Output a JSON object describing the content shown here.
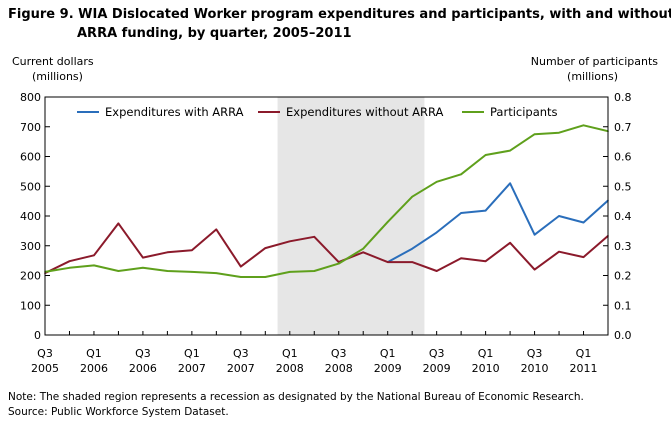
{
  "figure": {
    "title_line1": "Figure 9. WIA Dislocated Worker program expenditures and participants, with and without",
    "title_line2": "ARRA funding, by quarter, 2005–2011",
    "note": "Note: The shaded region represents a recession as designated by the National Bureau of Economic Research.",
    "source": "Source: Public Workforce System Dataset."
  },
  "chart_data": {
    "type": "line",
    "x_categories": [
      "Q3 2005",
      "Q4 2005",
      "Q1 2006",
      "Q2 2006",
      "Q3 2006",
      "Q4 2006",
      "Q1 2007",
      "Q2 2007",
      "Q3 2007",
      "Q4 2007",
      "Q1 2008",
      "Q2 2008",
      "Q3 2008",
      "Q4 2008",
      "Q1 2009",
      "Q2 2009",
      "Q3 2009",
      "Q4 2009",
      "Q1 2010",
      "Q2 2010",
      "Q3 2010",
      "Q4 2010",
      "Q1 2011",
      "Q2 2011"
    ],
    "x_tick_labels": [
      {
        "index": 0,
        "quarter": "Q3",
        "year": "2005"
      },
      {
        "index": 2,
        "quarter": "Q1",
        "year": "2006"
      },
      {
        "index": 4,
        "quarter": "Q3",
        "year": "2006"
      },
      {
        "index": 6,
        "quarter": "Q1",
        "year": "2007"
      },
      {
        "index": 8,
        "quarter": "Q3",
        "year": "2007"
      },
      {
        "index": 10,
        "quarter": "Q1",
        "year": "2008"
      },
      {
        "index": 12,
        "quarter": "Q3",
        "year": "2008"
      },
      {
        "index": 14,
        "quarter": "Q1",
        "year": "2009"
      },
      {
        "index": 16,
        "quarter": "Q3",
        "year": "2009"
      },
      {
        "index": 18,
        "quarter": "Q1",
        "year": "2010"
      },
      {
        "index": 20,
        "quarter": "Q3",
        "year": "2010"
      },
      {
        "index": 22,
        "quarter": "Q1",
        "year": "2011"
      }
    ],
    "y_left": {
      "label_line1": "Current dollars",
      "label_line2": "(millions)",
      "range": [
        0,
        800
      ],
      "ticks": [
        0,
        100,
        200,
        300,
        400,
        500,
        600,
        700,
        800
      ],
      "tick_labels": [
        "0",
        "100",
        "200",
        "300",
        "400",
        "500",
        "600",
        "700",
        "800"
      ]
    },
    "y_right": {
      "label_line1": "Number of participants",
      "label_line2": "(millions)",
      "range": [
        0,
        0.8
      ],
      "ticks": [
        0,
        0.1,
        0.2,
        0.3,
        0.4,
        0.5,
        0.6,
        0.7,
        0.8
      ],
      "tick_labels": [
        "0.0",
        "0.1",
        "0.2",
        "0.3",
        "0.4",
        "0.5",
        "0.6",
        "0.7",
        "0.8"
      ]
    },
    "shaded_region": {
      "from": "Q4 2007",
      "to": "Q2 2009"
    },
    "legend_position": "top",
    "grid": false,
    "series": [
      {
        "name": "Expenditures with ARRA",
        "axis": "left",
        "color": "#2a6ebb",
        "values": [
          null,
          null,
          null,
          null,
          null,
          null,
          null,
          null,
          null,
          null,
          null,
          null,
          null,
          null,
          245,
          290,
          345,
          410,
          418,
          510,
          337,
          400,
          378,
          452
        ]
      },
      {
        "name": "Expenditures without ARRA",
        "axis": "left",
        "color": "#8b1a2b",
        "values": [
          208,
          248,
          268,
          375,
          260,
          278,
          285,
          355,
          230,
          292,
          315,
          330,
          245,
          278,
          245,
          245,
          215,
          258,
          248,
          310,
          220,
          280,
          262,
          333
        ]
      },
      {
        "name": "Participants",
        "axis": "right",
        "color": "#5fa01c",
        "values": [
          0.212,
          0.226,
          0.234,
          0.215,
          0.226,
          0.215,
          0.212,
          0.208,
          0.195,
          0.195,
          0.212,
          0.215,
          0.24,
          0.29,
          0.38,
          0.465,
          0.515,
          0.54,
          0.605,
          0.62,
          0.675,
          0.68,
          0.705,
          0.685
        ]
      }
    ]
  }
}
